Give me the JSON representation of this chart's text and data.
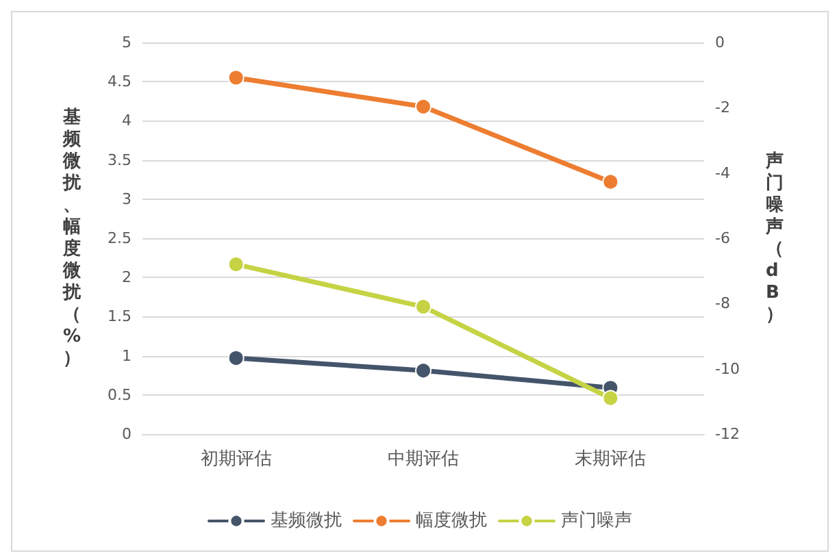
{
  "chart_data": {
    "type": "line",
    "categories": [
      "初期评估",
      "中期评估",
      "末期评估"
    ],
    "ylabel": "基频微扰、幅度微扰（%）",
    "y2label": "声门噪声（dB）",
    "series": [
      {
        "name": "基频微扰",
        "color": "#44546a",
        "values": [
          0.97,
          0.81,
          0.59
        ]
      },
      {
        "name": "幅度微扰",
        "color": "#ed7d31",
        "values": [
          4.55,
          4.18,
          3.22
        ]
      },
      {
        "name": "声门噪声",
        "color": "#c5d344",
        "axis": "y2",
        "values": [
          -6.8,
          -8.1,
          -10.9
        ]
      }
    ],
    "ylim": [
      0,
      5
    ],
    "yticks": [
      0,
      0.5,
      1,
      1.5,
      2,
      2.5,
      3,
      3.5,
      4,
      4.5,
      5
    ],
    "y2lim": [
      -12,
      0
    ],
    "y2ticks": [
      -12,
      -10,
      -8,
      -6,
      -4,
      -2,
      0
    ],
    "grid": "y",
    "legend": "bottom",
    "marker": "circle",
    "line_style": "solid"
  }
}
